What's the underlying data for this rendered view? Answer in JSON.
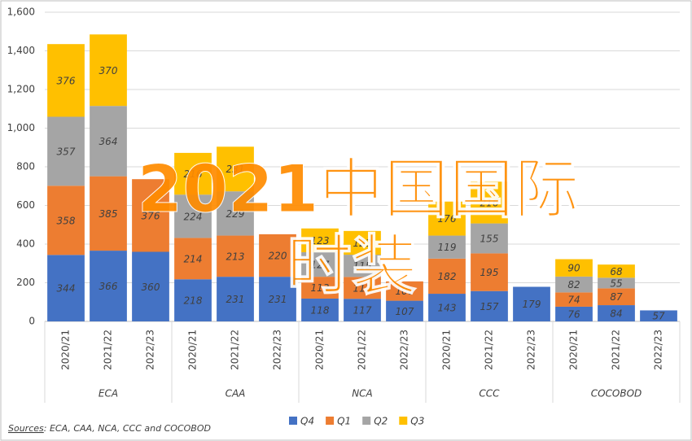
{
  "chart_data": {
    "type": "stacked_bar",
    "groups": [
      "ECA",
      "CAA",
      "NCA",
      "CCC",
      "COCOBOD"
    ],
    "categories": [
      "2020/21",
      "2021/22",
      "2022/23",
      "2020/21",
      "2021/22",
      "2022/23",
      "2020/21",
      "2021/22",
      "2022/23",
      "2020/21",
      "2021/22",
      "2022/23",
      "2020/21",
      "2021/22",
      "2022/23"
    ],
    "series": [
      {
        "name": "Q4",
        "color": "#4472c4",
        "values": [
          344,
          366,
          360,
          218,
          231,
          231,
          118,
          117,
          107,
          143,
          157,
          179,
          76,
          84,
          57
        ]
      },
      {
        "name": "Q1",
        "color": "#ed7d31",
        "values": [
          358,
          385,
          376,
          214,
          213,
          220,
          113,
          113,
          100,
          182,
          195,
          null,
          74,
          87,
          null
        ]
      },
      {
        "name": "Q2",
        "color": "#a5a5a5",
        "values": [
          357,
          364,
          null,
          224,
          229,
          null,
          127,
          115,
          null,
          119,
          155,
          null,
          82,
          55,
          null
        ]
      },
      {
        "name": "Q3",
        "color": "#ffc000",
        "values": [
          376,
          370,
          null,
          216,
          231,
          null,
          123,
          123,
          null,
          176,
          216,
          null,
          90,
          68,
          null
        ]
      }
    ],
    "ylim": [
      0,
      1600
    ],
    "yticks": [
      0,
      200,
      400,
      600,
      800,
      {
        "value": 1000,
        "label": "1,000"
      },
      {
        "value": 1200,
        "label": "1,200"
      },
      {
        "value": 1400,
        "label": "1,400"
      },
      {
        "value": 1600,
        "label": "1,600"
      }
    ],
    "grid": true,
    "legend": "bottom",
    "source_label": "Sources",
    "source": ": ECA, CAA, NCA, CCC and COCOBOD",
    "annotations": [
      "2021中国国际",
      "时装"
    ]
  }
}
